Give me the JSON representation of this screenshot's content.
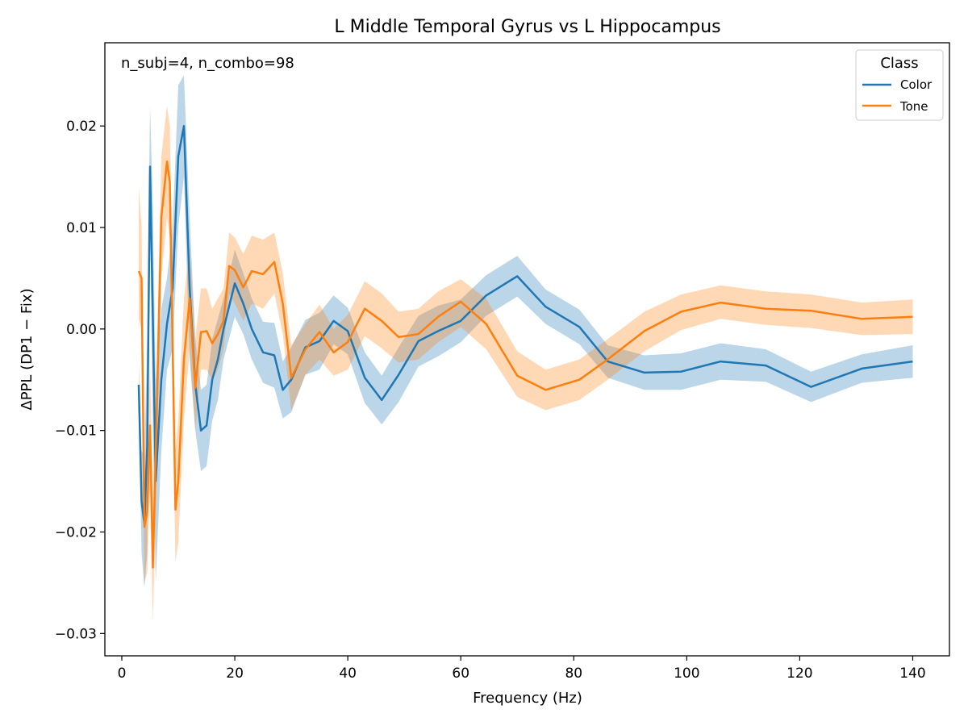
{
  "chart_data": {
    "type": "line",
    "title": "L Middle Temporal Gyrus vs L Hippocampus",
    "xlabel": "Frequency (Hz)",
    "ylabel": "ΔPPL (DP1 − Fix)",
    "annotation": "n_subj=4, n_combo=98",
    "xlim": [
      -3,
      146.5
    ],
    "ylim": [
      -0.0322,
      0.0282
    ],
    "x_ticks": [
      0,
      20,
      40,
      60,
      80,
      100,
      120,
      140
    ],
    "x_tick_labels": [
      "0",
      "20",
      "40",
      "60",
      "80",
      "100",
      "120",
      "140"
    ],
    "y_ticks": [
      -0.03,
      -0.02,
      -0.01,
      0.0,
      0.01,
      0.02
    ],
    "y_tick_labels": [
      "−0.03",
      "−0.02",
      "−0.01",
      "0.00",
      "0.01",
      "0.02"
    ],
    "grid": false,
    "legend": {
      "title": "Class",
      "placement": "top-right"
    },
    "series": [
      {
        "name": "Color",
        "color": "#1f77b4",
        "band_color": "#1f77b4",
        "band_opacity": 0.3,
        "x": [
          3,
          3.5,
          4,
          4.5,
          5,
          5.5,
          6,
          7,
          8,
          9,
          10,
          11,
          12,
          13,
          14,
          15,
          16,
          17,
          18,
          20,
          21.5,
          23,
          25,
          27,
          28.5,
          30,
          32.5,
          35,
          37.5,
          40,
          43,
          46,
          49,
          52.5,
          56,
          60,
          64.5,
          70,
          75,
          81,
          86,
          92.5,
          99,
          106,
          114,
          122,
          131,
          140
        ],
        "values": [
          -0.0055,
          -0.017,
          -0.0192,
          -0.0115,
          0.016,
          0.001,
          -0.015,
          -0.005,
          0.0005,
          0.004,
          0.017,
          0.02,
          0.004,
          -0.0055,
          -0.01,
          -0.0095,
          -0.005,
          -0.003,
          0.0,
          0.0045,
          0.0025,
          0.0,
          -0.0023,
          -0.0026,
          -0.006,
          -0.005,
          -0.0018,
          -0.0012,
          0.0008,
          -0.0002,
          -0.0048,
          -0.007,
          -0.0045,
          -0.0012,
          -0.0002,
          0.0008,
          0.0033,
          0.0052,
          0.0022,
          0.0002,
          -0.0032,
          -0.0043,
          -0.0042,
          -0.0032,
          -0.0036,
          -0.0057,
          -0.0039,
          -0.0032
        ],
        "lower": [
          -0.0075,
          -0.022,
          -0.0255,
          -0.022,
          0.01,
          -0.01,
          -0.025,
          -0.012,
          -0.004,
          -0.002,
          0.01,
          0.015,
          -0.003,
          -0.01,
          -0.014,
          -0.0135,
          -0.009,
          -0.007,
          -0.003,
          0.0012,
          -0.0005,
          -0.003,
          -0.0053,
          -0.0058,
          -0.0088,
          -0.0082,
          -0.0045,
          -0.004,
          -0.0015,
          -0.0025,
          -0.0073,
          -0.0094,
          -0.0072,
          -0.0037,
          -0.0027,
          -0.0013,
          0.0013,
          0.0032,
          0.0005,
          -0.0015,
          -0.0048,
          -0.006,
          -0.006,
          -0.005,
          -0.0052,
          -0.0072,
          -0.0053,
          -0.0048
        ],
        "upper": [
          -0.0035,
          -0.012,
          -0.0125,
          -0.001,
          0.022,
          0.012,
          -0.005,
          0.002,
          0.005,
          0.01,
          0.024,
          0.025,
          0.011,
          -0.001,
          -0.006,
          -0.0055,
          -0.001,
          0.001,
          0.003,
          0.0078,
          0.0055,
          0.003,
          0.0007,
          0.0006,
          -0.0032,
          -0.0018,
          0.0009,
          0.0016,
          0.0033,
          0.0021,
          -0.0023,
          -0.0046,
          -0.0018,
          0.0013,
          0.0023,
          0.0029,
          0.0053,
          0.0072,
          0.0039,
          0.0019,
          -0.0016,
          -0.0026,
          -0.0024,
          -0.0014,
          -0.002,
          -0.0042,
          -0.0025,
          -0.0016
        ]
      },
      {
        "name": "Tone",
        "color": "#ff7f0e",
        "band_color": "#ff7f0e",
        "band_opacity": 0.3,
        "x": [
          3,
          3.5,
          4,
          4.5,
          5,
          5.5,
          6,
          7,
          8,
          8.5,
          9.5,
          10,
          11,
          12,
          13,
          14,
          15,
          16,
          17,
          18,
          19,
          20,
          21.5,
          23,
          25,
          27,
          28.5,
          30,
          32.5,
          35,
          37.5,
          40,
          43,
          46,
          49,
          52.5,
          56,
          60,
          64.5,
          70,
          75,
          81,
          86,
          92.5,
          99,
          106,
          114,
          122,
          131,
          140
        ],
        "values": [
          0.0057,
          0.005,
          -0.0195,
          -0.018,
          -0.0095,
          -0.0235,
          -0.0125,
          0.011,
          0.0165,
          0.0145,
          -0.0178,
          -0.015,
          -0.003,
          0.003,
          -0.0058,
          -0.0003,
          -0.0002,
          -0.0014,
          -0.0005,
          0.0008,
          0.0062,
          0.0058,
          0.0041,
          0.0057,
          0.0054,
          0.0066,
          0.0025,
          -0.0048,
          -0.002,
          -0.0003,
          -0.0023,
          -0.0013,
          0.002,
          0.0008,
          -0.0008,
          -0.0005,
          0.0012,
          0.0027,
          0.0005,
          -0.0046,
          -0.006,
          -0.005,
          -0.003,
          -0.0002,
          0.0017,
          0.0026,
          0.002,
          0.0018,
          0.001,
          0.0012
        ],
        "lower": [
          0.001,
          0.0,
          -0.025,
          -0.024,
          -0.016,
          -0.029,
          -0.018,
          0.005,
          0.011,
          0.009,
          -0.023,
          -0.021,
          -0.009,
          -0.002,
          -0.01,
          -0.004,
          -0.004,
          -0.005,
          -0.004,
          -0.002,
          0.0035,
          0.0025,
          0.0008,
          0.0025,
          0.002,
          0.0035,
          -0.0005,
          -0.008,
          -0.0045,
          -0.003,
          -0.0046,
          -0.004,
          -0.0007,
          -0.0019,
          -0.0033,
          -0.003,
          -0.0013,
          0.0002,
          -0.002,
          -0.0067,
          -0.008,
          -0.007,
          -0.005,
          -0.0022,
          -0.0001,
          0.001,
          0.0004,
          0.0001,
          -0.0006,
          -0.0005
        ],
        "upper": [
          0.014,
          0.01,
          -0.014,
          -0.012,
          -0.003,
          -0.018,
          -0.007,
          0.017,
          0.022,
          0.02,
          -0.012,
          -0.009,
          0.003,
          0.008,
          -0.001,
          0.004,
          0.004,
          0.002,
          0.003,
          0.004,
          0.0095,
          0.009,
          0.0074,
          0.0092,
          0.0088,
          0.0095,
          0.0055,
          -0.0016,
          0.0005,
          0.0024,
          0.0,
          0.0014,
          0.0047,
          0.0035,
          0.0017,
          0.002,
          0.0037,
          0.0049,
          0.003,
          -0.0022,
          -0.004,
          -0.003,
          -0.001,
          0.0017,
          0.0034,
          0.0043,
          0.0037,
          0.0034,
          0.0026,
          0.0029
        ]
      }
    ]
  }
}
